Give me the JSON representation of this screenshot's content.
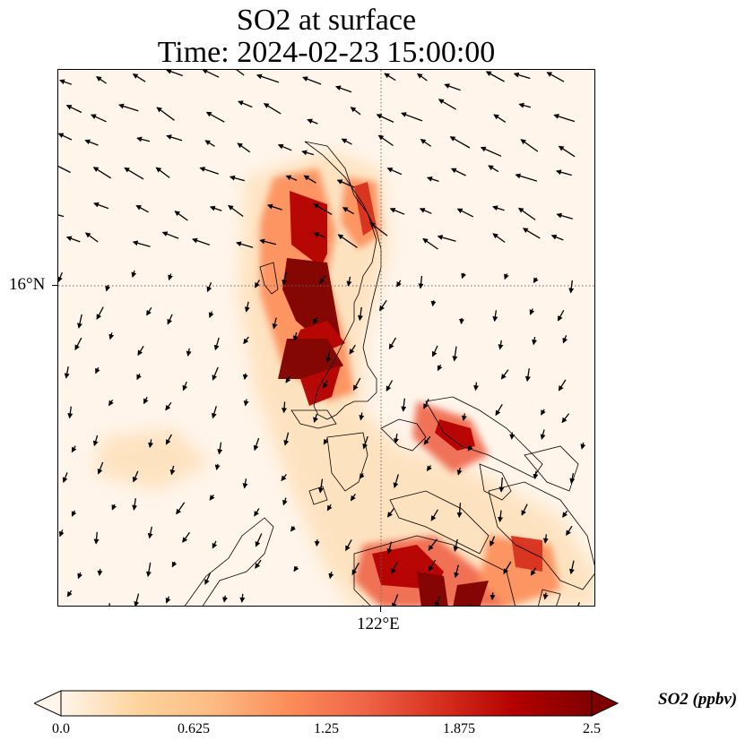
{
  "title": {
    "line1": "SO2 at surface",
    "line2": "Time: 2024-02-23 15:00:00"
  },
  "map": {
    "lat_label": "16°N",
    "lon_label": "122°E",
    "gridline_color": "#666666",
    "coastline_color": "#000000"
  },
  "colorbar": {
    "title": "SO2 (ppbv)",
    "ticks": [
      "0.0",
      "0.625",
      "1.25",
      "1.875",
      "2.5"
    ],
    "tick_values": [
      0,
      0.625,
      1.25,
      1.875,
      2.5
    ],
    "range": [
      0,
      2.5
    ],
    "colors": [
      "#fff5eb",
      "#fdd49e",
      "#fdbb84",
      "#fc8d59",
      "#ef6548",
      "#d7301f",
      "#b30000",
      "#7f0000"
    ],
    "extend": "min"
  },
  "chart_data": {
    "type": "heatmap",
    "variable": "SO2",
    "units": "ppbv",
    "vmin": 0,
    "vmax": 2.5
  }
}
